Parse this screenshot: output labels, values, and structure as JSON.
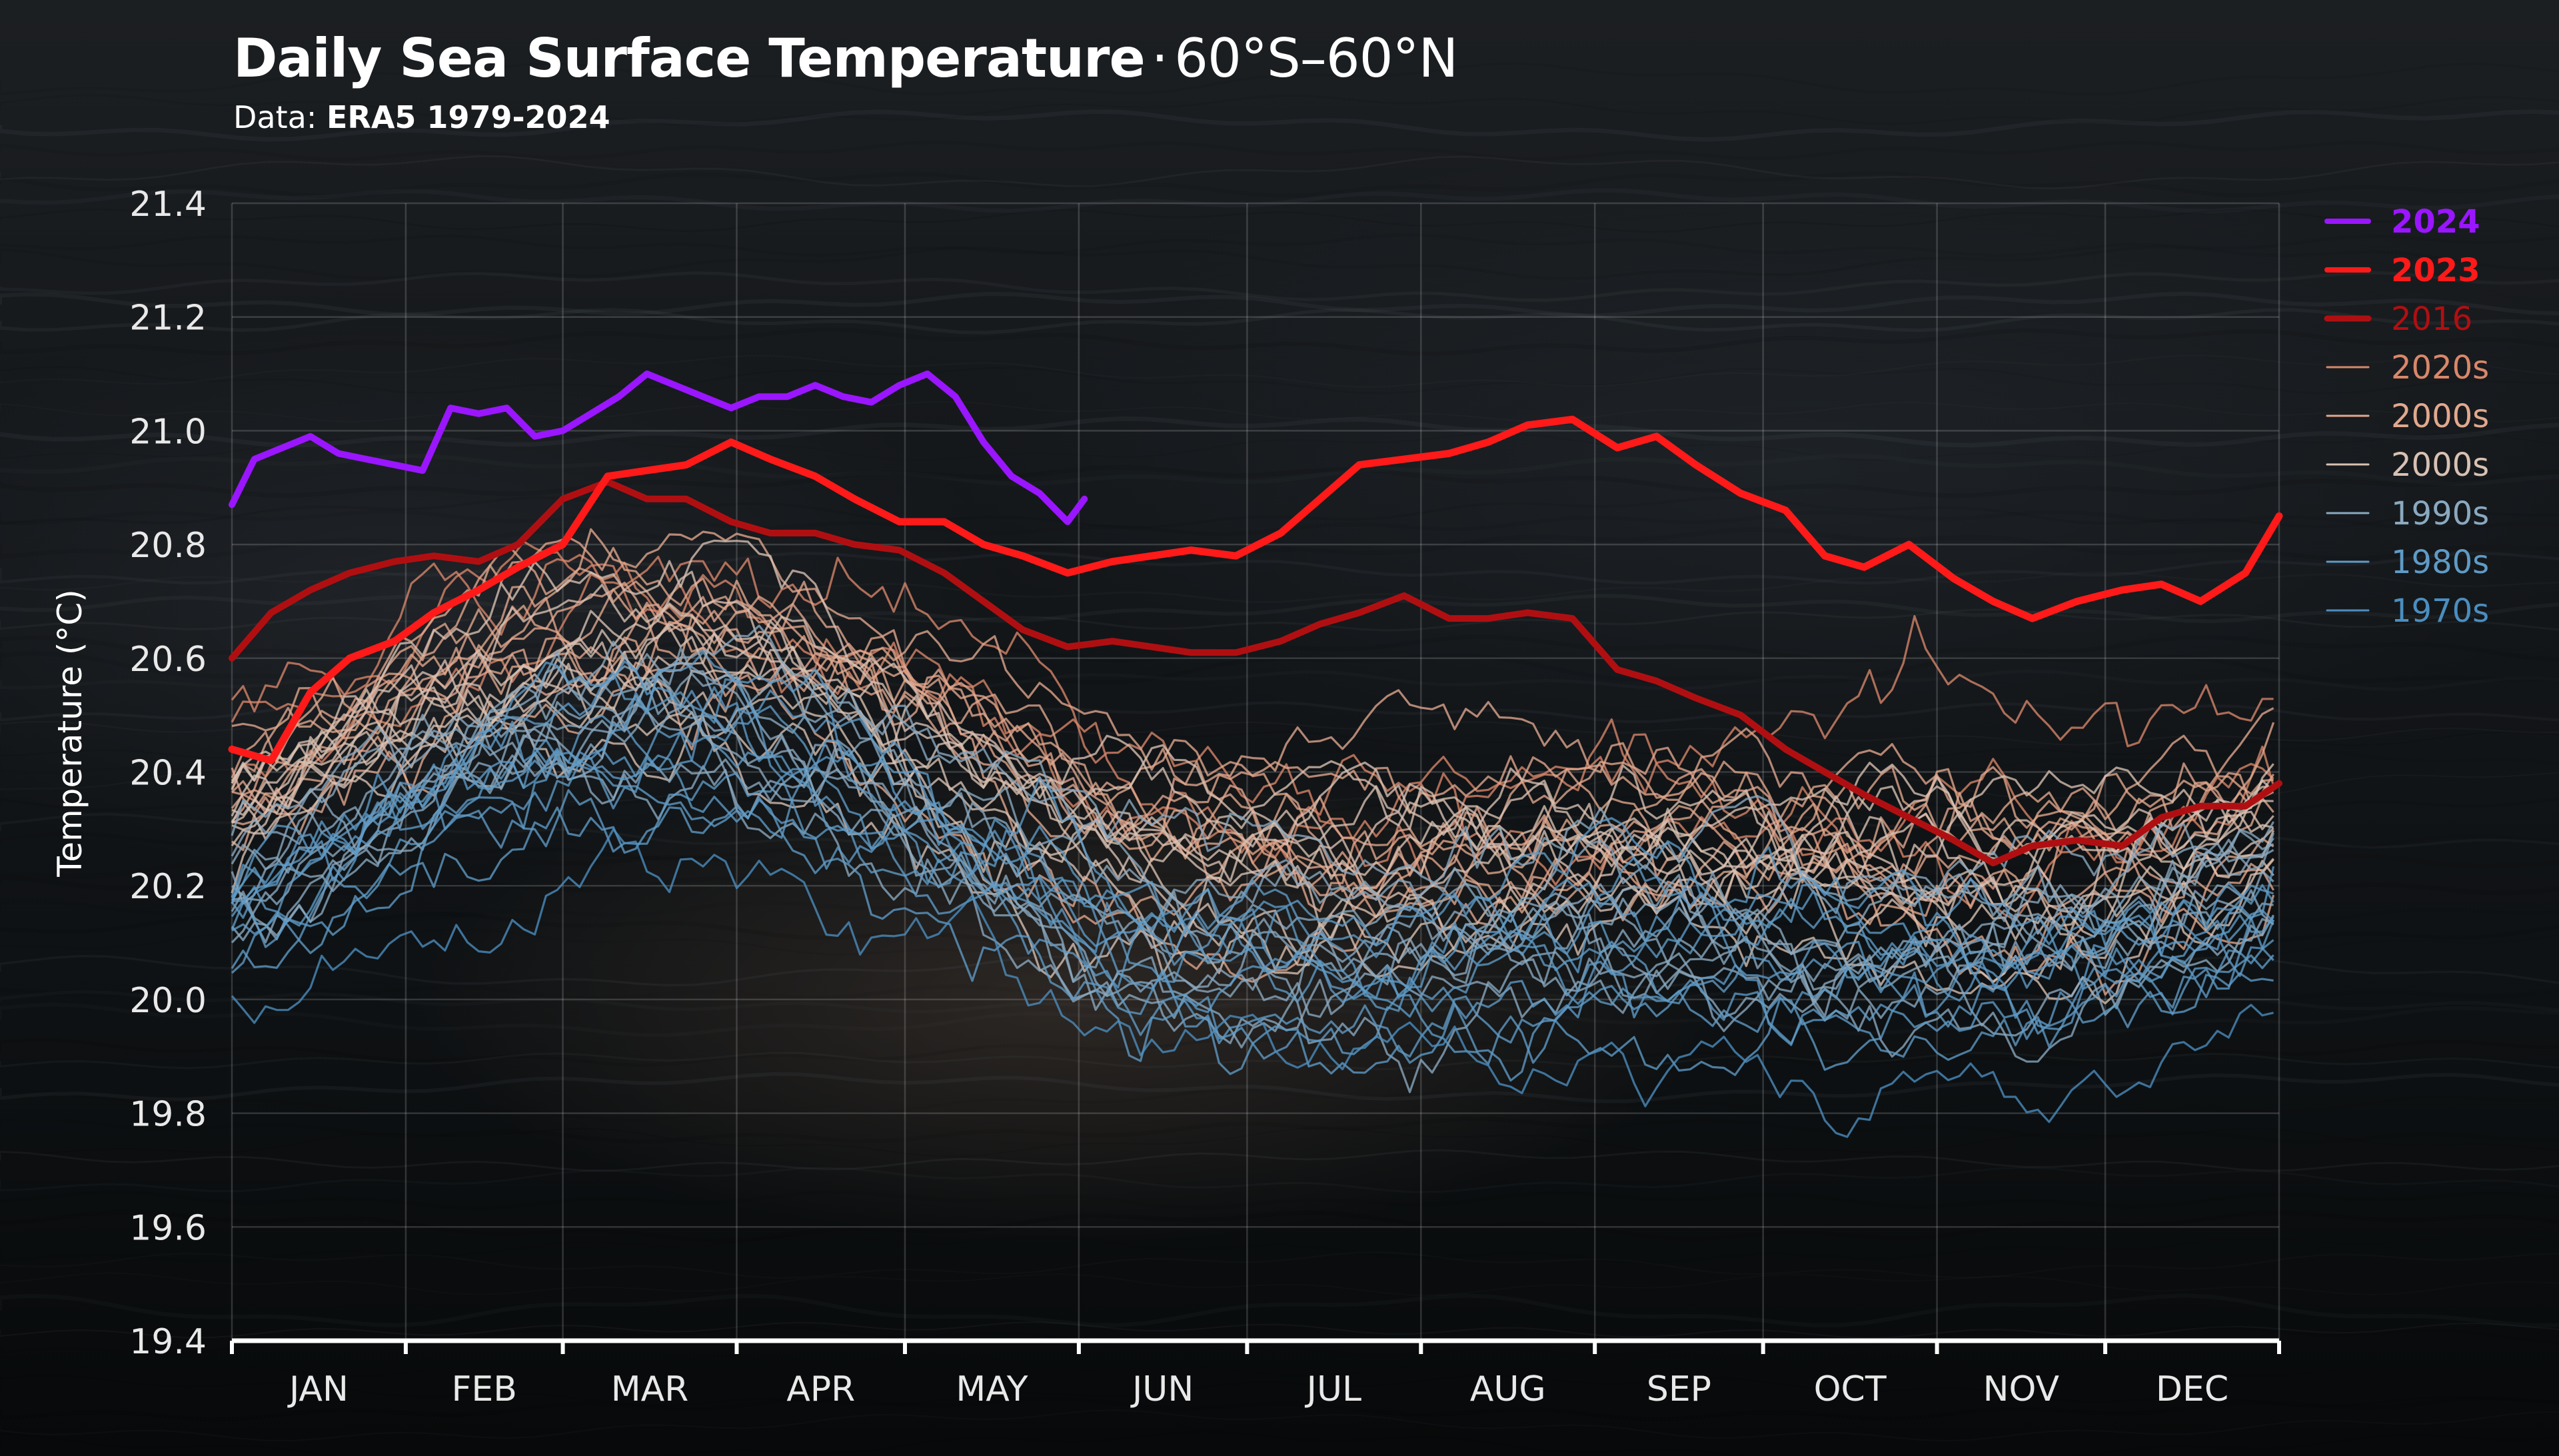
{
  "title": {
    "main": "Daily Sea Surface Temperature",
    "separator": "·",
    "region": "60°S–60°N"
  },
  "subtitle": {
    "label": "Data:",
    "source": "ERA5 1979-2024"
  },
  "chart_data": {
    "type": "line",
    "ylabel": "Temperature (°C)",
    "xlabel": "",
    "ylim": [
      19.4,
      21.4
    ],
    "yticks": [
      "21.4",
      "21.2",
      "21.0",
      "20.8",
      "20.6",
      "20.4",
      "20.2",
      "20.0",
      "19.8",
      "19.6",
      "19.4"
    ],
    "months": [
      "JAN",
      "FEB",
      "MAR",
      "APR",
      "MAY",
      "JUN",
      "JUL",
      "AUG",
      "SEP",
      "OCT",
      "NOV",
      "DEC"
    ],
    "x_unit": "day of year",
    "xlim": [
      1,
      366
    ],
    "grid": true,
    "legend_position": "right",
    "series": [
      {
        "name": "2024",
        "color": "#9a16ff",
        "highlight": true,
        "x": [
          1,
          5,
          10,
          15,
          20,
          25,
          30,
          35,
          40,
          45,
          50,
          55,
          60,
          65,
          70,
          75,
          80,
          85,
          90,
          95,
          100,
          105,
          110,
          115,
          120,
          125,
          130,
          135,
          140,
          145,
          150,
          153
        ],
        "y": [
          20.87,
          20.95,
          20.97,
          20.99,
          20.96,
          20.95,
          20.94,
          20.93,
          21.04,
          21.03,
          21.04,
          20.99,
          21.0,
          21.03,
          21.06,
          21.1,
          21.08,
          21.06,
          21.04,
          21.06,
          21.06,
          21.08,
          21.06,
          21.05,
          21.08,
          21.1,
          21.06,
          20.98,
          20.92,
          20.89,
          20.84,
          20.88
        ]
      },
      {
        "name": "2023",
        "color": "#ff1a1a",
        "highlight": true,
        "x": [
          1,
          8,
          15,
          22,
          30,
          37,
          45,
          52,
          60,
          68,
          75,
          82,
          90,
          97,
          105,
          112,
          120,
          128,
          135,
          142,
          150,
          158,
          165,
          172,
          180,
          188,
          195,
          202,
          210,
          218,
          225,
          232,
          240,
          248,
          255,
          262,
          270,
          278,
          285,
          292,
          300,
          308,
          315,
          322,
          330,
          338,
          345,
          352,
          360,
          366
        ],
        "y": [
          20.44,
          20.42,
          20.54,
          20.6,
          20.63,
          20.68,
          20.72,
          20.76,
          20.8,
          20.92,
          20.93,
          20.94,
          20.98,
          20.95,
          20.92,
          20.88,
          20.84,
          20.84,
          20.8,
          20.78,
          20.75,
          20.77,
          20.78,
          20.79,
          20.78,
          20.82,
          20.88,
          20.94,
          20.95,
          20.96,
          20.98,
          21.01,
          21.02,
          20.97,
          20.99,
          20.94,
          20.89,
          20.86,
          20.78,
          20.76,
          20.8,
          20.74,
          20.7,
          20.67,
          20.7,
          20.72,
          20.73,
          20.7,
          20.75,
          20.85
        ]
      },
      {
        "name": "2016",
        "color": "#b00f12",
        "highlight": true,
        "x": [
          1,
          8,
          15,
          22,
          30,
          37,
          45,
          52,
          60,
          68,
          75,
          82,
          90,
          97,
          105,
          112,
          120,
          128,
          135,
          142,
          150,
          158,
          165,
          172,
          180,
          188,
          195,
          202,
          210,
          218,
          225,
          232,
          240,
          248,
          255,
          262,
          270,
          278,
          285,
          292,
          300,
          308,
          315,
          322,
          330,
          338,
          345,
          352,
          360,
          366
        ],
        "y": [
          20.6,
          20.68,
          20.72,
          20.75,
          20.77,
          20.78,
          20.77,
          20.8,
          20.88,
          20.91,
          20.88,
          20.88,
          20.84,
          20.82,
          20.82,
          20.8,
          20.79,
          20.75,
          20.7,
          20.65,
          20.62,
          20.63,
          20.62,
          20.61,
          20.61,
          20.63,
          20.66,
          20.68,
          20.71,
          20.67,
          20.67,
          20.68,
          20.67,
          20.58,
          20.56,
          20.53,
          20.5,
          20.44,
          20.4,
          20.36,
          20.32,
          20.28,
          20.24,
          20.27,
          20.28,
          20.27,
          20.32,
          20.34,
          20.34,
          20.38
        ]
      }
    ],
    "background_series": [
      {
        "name": "2020s",
        "color": "#d9876a",
        "count": 3
      },
      {
        "name": "2000s",
        "color": "#e2a88e",
        "count": 10
      },
      {
        "name": "2000s",
        "color": "#d8c1b3",
        "count": 10
      },
      {
        "name": "1990s",
        "color": "#8aa9c0",
        "count": 10
      },
      {
        "name": "1980s",
        "color": "#5f9bc6",
        "count": 10
      },
      {
        "name": "1970s",
        "color": "#4b8ec0",
        "count": 1
      }
    ]
  },
  "legend": [
    {
      "label": "2024",
      "color": "#9a16ff",
      "bold": true,
      "weight": 8
    },
    {
      "label": "2023",
      "color": "#ff1a1a",
      "bold": true,
      "weight": 8
    },
    {
      "label": "2016",
      "color": "#b00f12",
      "bold": false,
      "weight": 9
    },
    {
      "label": "2020s",
      "color": "#d9876a",
      "bold": false,
      "weight": 3
    },
    {
      "label": "2000s",
      "color": "#e2a88e",
      "bold": false,
      "weight": 3
    },
    {
      "label": "2000s",
      "color": "#d8c1b3",
      "bold": false,
      "weight": 3
    },
    {
      "label": "1990s",
      "color": "#8aa9c0",
      "bold": false,
      "weight": 3
    },
    {
      "label": "1980s",
      "color": "#5f9bc6",
      "bold": false,
      "weight": 3
    },
    {
      "label": "1970s",
      "color": "#4b8ec0",
      "bold": false,
      "weight": 3
    }
  ]
}
